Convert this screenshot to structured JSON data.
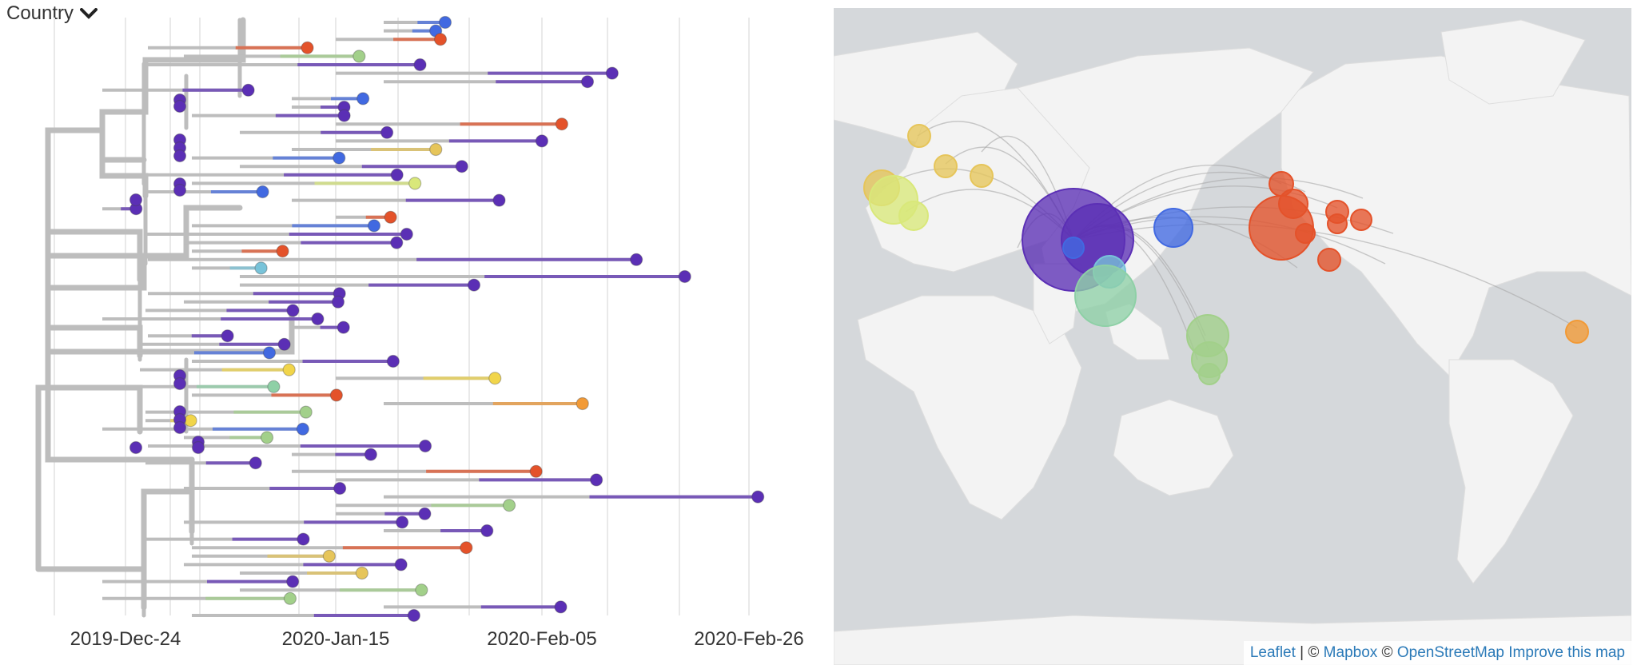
{
  "color_by": {
    "label": "Country",
    "icon": "chevron-down-icon"
  },
  "tree": {
    "x_axis_labels": [
      "2019-Dec-24",
      "2020-Jan-15",
      "2020-Feb-05",
      "2020-Feb-26"
    ],
    "branch_color": "#bdbdbd",
    "palette": {
      "china": "#5b2fb5",
      "japan": "#4169e1",
      "usa": "#e4522a",
      "australia": "#a2d08a",
      "thailand": "#8ed0a6",
      "singapore": "#78c3d9",
      "france": "#f1d54a",
      "germany": "#d9e87a",
      "italy": "#e6c55a",
      "spain": "#f29a36"
    }
  },
  "map": {
    "ocean_color": "#d5d8db",
    "land_color": "#f3f3f3",
    "attribution": {
      "leaflet": "Leaflet",
      "sep1": " | © ",
      "mapbox": "Mapbox",
      "sep2": " © ",
      "osm": "OpenStreetMap",
      "improve": "Improve this map"
    }
  }
}
